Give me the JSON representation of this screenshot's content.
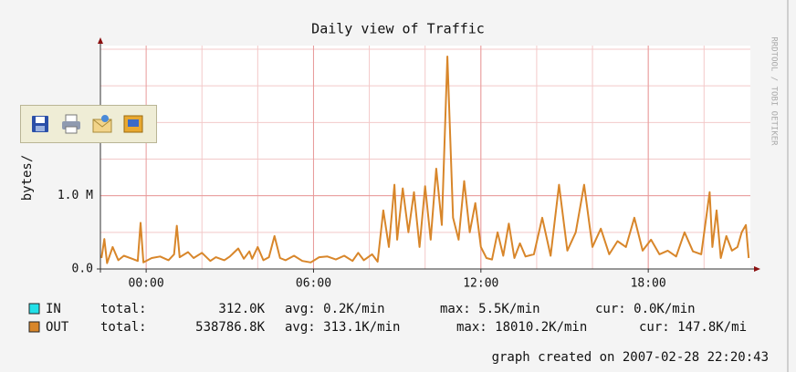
{
  "chart_data": {
    "type": "line",
    "title": "Daily view of Traffic",
    "y_label": "bytes/",
    "side_text": "RRDTOOL / TOBI OETIKER",
    "footer": "graph created on 2007-02-28 22:20:43",
    "xlim": [
      -1.64,
      21.66
    ],
    "xticks": [
      {
        "value": 0,
        "label": "00:00"
      },
      {
        "value": 6,
        "label": "06:00"
      },
      {
        "value": 12,
        "label": "12:00"
      },
      {
        "value": 18,
        "label": "18:00"
      }
    ],
    "ylim": [
      0,
      3050000
    ],
    "yticks": [
      {
        "value": 0,
        "label": "0.0"
      },
      {
        "value": 1000000,
        "label": "1.0 M"
      }
    ],
    "grid": true,
    "x": [
      -1.6,
      -1.5,
      -1.4,
      -1.2,
      -1.0,
      -0.8,
      -0.5,
      -0.3,
      -0.2,
      -0.1,
      0.2,
      0.5,
      0.8,
      1.0,
      1.1,
      1.2,
      1.5,
      1.7,
      2.0,
      2.3,
      2.5,
      2.8,
      3.0,
      3.3,
      3.5,
      3.7,
      3.8,
      4.0,
      4.2,
      4.4,
      4.6,
      4.8,
      5.0,
      5.3,
      5.6,
      5.9,
      6.2,
      6.5,
      6.8,
      7.1,
      7.4,
      7.6,
      7.8,
      8.1,
      8.3,
      8.5,
      8.7,
      8.9,
      9.0,
      9.2,
      9.4,
      9.6,
      9.8,
      10.0,
      10.2,
      10.4,
      10.6,
      10.8,
      11.0,
      11.2,
      11.4,
      11.6,
      11.8,
      12.0,
      12.2,
      12.4,
      12.6,
      12.8,
      13.0,
      13.2,
      13.4,
      13.6,
      13.9,
      14.2,
      14.5,
      14.8,
      15.1,
      15.4,
      15.7,
      16.0,
      16.3,
      16.6,
      16.9,
      17.2,
      17.5,
      17.8,
      18.1,
      18.4,
      18.7,
      19.0,
      19.3,
      19.6,
      19.9,
      20.2,
      20.3,
      20.45,
      20.6,
      20.8,
      21.0,
      21.2,
      21.35,
      21.5,
      21.6
    ],
    "series": [
      {
        "name": "OUT",
        "color": "#d8862a",
        "values": [
          150000,
          410000,
          80000,
          300000,
          120000,
          180000,
          140000,
          110000,
          630000,
          90000,
          150000,
          170000,
          120000,
          200000,
          590000,
          160000,
          230000,
          150000,
          220000,
          110000,
          160000,
          120000,
          170000,
          280000,
          140000,
          240000,
          140000,
          300000,
          120000,
          160000,
          450000,
          150000,
          120000,
          180000,
          110000,
          90000,
          160000,
          170000,
          130000,
          180000,
          110000,
          220000,
          120000,
          200000,
          100000,
          800000,
          300000,
          1150000,
          400000,
          1100000,
          500000,
          1050000,
          300000,
          1130000,
          400000,
          1370000,
          600000,
          2900000,
          700000,
          400000,
          1200000,
          500000,
          900000,
          300000,
          150000,
          130000,
          500000,
          180000,
          620000,
          150000,
          350000,
          170000,
          200000,
          700000,
          180000,
          1150000,
          250000,
          500000,
          1150000,
          300000,
          550000,
          200000,
          380000,
          300000,
          700000,
          250000,
          400000,
          200000,
          250000,
          170000,
          500000,
          240000,
          200000,
          1050000,
          300000,
          800000,
          150000,
          450000,
          250000,
          300000,
          500000,
          600000,
          150000
        ]
      }
    ],
    "legend": [
      {
        "name": "IN",
        "color": "#22e0e8",
        "total_label": "total:",
        "total": "312.0K",
        "avg": "avg: 0.2K/min",
        "max": "max: 5.5K/min",
        "cur": "cur: 0.0K/min"
      },
      {
        "name": "OUT",
        "color": "#d8862a",
        "total_label": "total:",
        "total": "538786.8K",
        "avg": "avg: 313.1K/min",
        "max": "max: 18010.2K/min",
        "cur": "cur: 147.8K/mi"
      }
    ]
  }
}
